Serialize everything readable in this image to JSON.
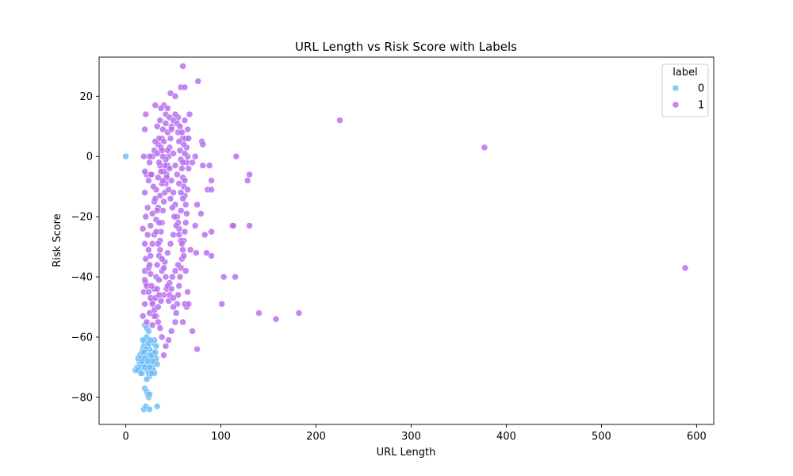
{
  "chart_data": {
    "type": "scatter",
    "title": "URL Length vs Risk Score with Labels",
    "xlabel": "URL Length",
    "ylabel": "Risk Score",
    "xlim": [
      -28,
      618
    ],
    "ylim": [
      -89,
      33
    ],
    "xticks": [
      0,
      100,
      200,
      300,
      400,
      500,
      600
    ],
    "yticks": [
      -80,
      -60,
      -40,
      -20,
      0,
      20
    ],
    "grid": false,
    "legend": {
      "title": "label",
      "placement": "top-right"
    },
    "series": [
      {
        "name": "0",
        "color": "#6bbcf7",
        "points": [
          [
            0,
            0
          ],
          [
            10,
            -71
          ],
          [
            12,
            -70
          ],
          [
            14,
            -68
          ],
          [
            13,
            -67
          ],
          [
            15,
            -69
          ],
          [
            16,
            -70
          ],
          [
            17,
            -72
          ],
          [
            18,
            -66
          ],
          [
            19,
            -67
          ],
          [
            20,
            -68
          ],
          [
            21,
            -69
          ],
          [
            22,
            -70
          ],
          [
            23,
            -71
          ],
          [
            24,
            -72
          ],
          [
            25,
            -73
          ],
          [
            15,
            -66
          ],
          [
            17,
            -65
          ],
          [
            18,
            -64
          ],
          [
            19,
            -63
          ],
          [
            20,
            -62
          ],
          [
            21,
            -61
          ],
          [
            22,
            -60
          ],
          [
            20,
            -56
          ],
          [
            22,
            -57
          ],
          [
            24,
            -58
          ],
          [
            18,
            -61
          ],
          [
            16,
            -67
          ],
          [
            26,
            -68
          ],
          [
            27,
            -69
          ],
          [
            28,
            -70
          ],
          [
            29,
            -71
          ],
          [
            30,
            -72
          ],
          [
            31,
            -68
          ],
          [
            32,
            -67
          ],
          [
            33,
            -69
          ],
          [
            30,
            -66
          ],
          [
            28,
            -65
          ],
          [
            25,
            -64
          ],
          [
            23,
            -63
          ],
          [
            21,
            -64
          ],
          [
            19,
            -65
          ],
          [
            24,
            -66
          ],
          [
            26,
            -67
          ],
          [
            27,
            -66
          ],
          [
            22,
            -74
          ],
          [
            20,
            -77
          ],
          [
            22,
            -78
          ],
          [
            23,
            -79
          ],
          [
            24,
            -80
          ],
          [
            25,
            -79
          ],
          [
            19,
            -84
          ],
          [
            21,
            -83
          ],
          [
            25,
            -84
          ],
          [
            33,
            -83
          ],
          [
            14,
            -70
          ],
          [
            12,
            -71
          ],
          [
            16,
            -72
          ],
          [
            18,
            -69
          ],
          [
            20,
            -70
          ],
          [
            25,
            -70
          ],
          [
            28,
            -68
          ],
          [
            31,
            -65
          ],
          [
            29,
            -62
          ],
          [
            32,
            -63
          ],
          [
            30,
            -61
          ],
          [
            24,
            -62
          ],
          [
            26,
            -61
          ],
          [
            17,
            -68
          ],
          [
            20,
            -67
          ],
          [
            23,
            -68
          ],
          [
            27,
            -72
          ]
        ]
      },
      {
        "name": "1",
        "color": "#b469f0",
        "points": [
          [
            60,
            30
          ],
          [
            76,
            25
          ],
          [
            58,
            23
          ],
          [
            62,
            23
          ],
          [
            47,
            21
          ],
          [
            52,
            20
          ],
          [
            225,
            12
          ],
          [
            377,
            3
          ],
          [
            588,
            -37
          ],
          [
            116,
            0
          ],
          [
            80,
            5
          ],
          [
            81,
            4
          ],
          [
            130,
            -6
          ],
          [
            128,
            -8
          ],
          [
            112,
            -23
          ],
          [
            113,
            -23
          ],
          [
            130,
            -23
          ],
          [
            103,
            -40
          ],
          [
            115,
            -40
          ],
          [
            101,
            -49
          ],
          [
            140,
            -52
          ],
          [
            158,
            -54
          ],
          [
            182,
            -52
          ],
          [
            70,
            -58
          ],
          [
            75,
            -64
          ],
          [
            68,
            -31
          ],
          [
            74,
            -32
          ],
          [
            85,
            -32
          ],
          [
            90,
            -33
          ],
          [
            83,
            -26
          ],
          [
            90,
            -25
          ],
          [
            73,
            -23
          ],
          [
            79,
            -19
          ],
          [
            75,
            -16
          ],
          [
            86,
            -11
          ],
          [
            90,
            -11
          ],
          [
            90,
            -8
          ],
          [
            88,
            -3
          ],
          [
            81,
            -3
          ],
          [
            73,
            0
          ],
          [
            70,
            -2
          ],
          [
            67,
            14
          ],
          [
            62,
            12
          ],
          [
            65,
            9
          ],
          [
            60,
            6
          ],
          [
            55,
            13
          ],
          [
            40,
            17
          ],
          [
            42,
            14
          ],
          [
            31,
            17
          ],
          [
            37,
            16
          ],
          [
            46,
            13
          ],
          [
            48,
            10
          ],
          [
            44,
            8
          ],
          [
            38,
            6
          ],
          [
            34,
            4
          ],
          [
            30,
            2
          ],
          [
            28,
            0
          ],
          [
            25,
            -2
          ],
          [
            22,
            -6
          ],
          [
            20,
            -12
          ],
          [
            23,
            -17
          ],
          [
            21,
            -20
          ],
          [
            18,
            -24
          ],
          [
            20,
            -29
          ],
          [
            21,
            -34
          ],
          [
            20,
            -38
          ],
          [
            21,
            -42
          ],
          [
            19,
            -45
          ],
          [
            20,
            -49
          ],
          [
            18,
            -53
          ],
          [
            22,
            -55
          ],
          [
            25,
            -52
          ],
          [
            28,
            -48
          ],
          [
            30,
            -44
          ],
          [
            32,
            -40
          ],
          [
            33,
            -36
          ],
          [
            35,
            -33
          ],
          [
            36,
            -28
          ],
          [
            37,
            -25
          ],
          [
            38,
            -22
          ],
          [
            39,
            -18
          ],
          [
            40,
            -15
          ],
          [
            41,
            -12
          ],
          [
            42,
            -9
          ],
          [
            43,
            -6
          ],
          [
            44,
            -3
          ],
          [
            45,
            0
          ],
          [
            46,
            3
          ],
          [
            47,
            6
          ],
          [
            48,
            9
          ],
          [
            50,
            12
          ],
          [
            52,
            14
          ],
          [
            54,
            11
          ],
          [
            55,
            8
          ],
          [
            56,
            5
          ],
          [
            57,
            2
          ],
          [
            58,
            -1
          ],
          [
            59,
            -4
          ],
          [
            60,
            -7
          ],
          [
            61,
            -10
          ],
          [
            62,
            -13
          ],
          [
            63,
            -16
          ],
          [
            64,
            -19
          ],
          [
            63,
            -22
          ],
          [
            62,
            -25
          ],
          [
            61,
            -28
          ],
          [
            60,
            -31
          ],
          [
            59,
            -34
          ],
          [
            58,
            -37
          ],
          [
            57,
            -40
          ],
          [
            56,
            -43
          ],
          [
            55,
            -46
          ],
          [
            54,
            -49
          ],
          [
            53,
            -52
          ],
          [
            52,
            -55
          ],
          [
            48,
            -58
          ],
          [
            45,
            -61
          ],
          [
            42,
            -63
          ],
          [
            40,
            -66
          ],
          [
            38,
            -60
          ],
          [
            36,
            -57
          ],
          [
            34,
            -55
          ],
          [
            32,
            -53
          ],
          [
            30,
            -51
          ],
          [
            28,
            -49
          ],
          [
            26,
            -47
          ],
          [
            24,
            -45
          ],
          [
            22,
            -43
          ],
          [
            20,
            -41
          ],
          [
            24,
            -37
          ],
          [
            26,
            -33
          ],
          [
            28,
            -29
          ],
          [
            30,
            -26
          ],
          [
            32,
            -21
          ],
          [
            34,
            -17
          ],
          [
            36,
            -13
          ],
          [
            38,
            -9
          ],
          [
            40,
            -5
          ],
          [
            42,
            -1
          ],
          [
            44,
            2
          ],
          [
            46,
            -4
          ],
          [
            48,
            -8
          ],
          [
            50,
            -12
          ],
          [
            52,
            -16
          ],
          [
            54,
            -20
          ],
          [
            56,
            -24
          ],
          [
            58,
            -28
          ],
          [
            64,
            -2
          ],
          [
            66,
            -4
          ],
          [
            65,
            0
          ],
          [
            64,
            3
          ],
          [
            63,
            6
          ],
          [
            66,
            6
          ],
          [
            62,
            -8
          ],
          [
            65,
            -11
          ],
          [
            60,
            -14
          ],
          [
            58,
            -18
          ],
          [
            55,
            -22
          ],
          [
            50,
            -26
          ],
          [
            47,
            -29
          ],
          [
            44,
            -32
          ],
          [
            41,
            -35
          ],
          [
            38,
            -38
          ],
          [
            35,
            -41
          ],
          [
            33,
            -44
          ],
          [
            31,
            -47
          ],
          [
            34,
            -50
          ],
          [
            37,
            -48
          ],
          [
            40,
            -46
          ],
          [
            43,
            -44
          ],
          [
            46,
            -42
          ],
          [
            49,
            -40
          ],
          [
            52,
            -38
          ],
          [
            55,
            -36
          ],
          [
            39,
            9
          ],
          [
            36,
            12
          ],
          [
            33,
            10
          ],
          [
            35,
            6
          ],
          [
            37,
            3
          ],
          [
            39,
            0
          ],
          [
            41,
            -3
          ],
          [
            43,
            -7
          ],
          [
            45,
            -11
          ],
          [
            47,
            -14
          ],
          [
            49,
            -17
          ],
          [
            51,
            -20
          ],
          [
            53,
            -23
          ],
          [
            56,
            -26
          ],
          [
            59,
            -29
          ],
          [
            61,
            -33
          ],
          [
            63,
            -38
          ],
          [
            65,
            -45
          ],
          [
            64,
            -50
          ],
          [
            62,
            -49
          ],
          [
            66,
            -49
          ],
          [
            60,
            -55
          ],
          [
            50,
            -50
          ],
          [
            45,
            -48
          ],
          [
            35,
            -46
          ],
          [
            30,
            -53
          ],
          [
            28,
            -56
          ],
          [
            27,
            -43
          ],
          [
            26,
            -39
          ],
          [
            25,
            -36
          ],
          [
            24,
            -31
          ],
          [
            23,
            -26
          ],
          [
            26,
            -23
          ],
          [
            28,
            -19
          ],
          [
            30,
            -15
          ],
          [
            32,
            -11
          ],
          [
            34,
            -7
          ],
          [
            36,
            -3
          ],
          [
            38,
            2
          ],
          [
            40,
            5
          ],
          [
            42,
            11
          ],
          [
            44,
            16
          ],
          [
            50,
            1
          ],
          [
            52,
            -3
          ],
          [
            54,
            -6
          ],
          [
            56,
            -9
          ],
          [
            58,
            -12
          ],
          [
            60,
            -2
          ],
          [
            62,
            1
          ],
          [
            61,
            4
          ],
          [
            59,
            8
          ],
          [
            57,
            10
          ],
          [
            26,
            -6
          ],
          [
            24,
            -8
          ],
          [
            20,
            -5
          ],
          [
            19,
            0
          ],
          [
            20,
            9
          ],
          [
            21,
            14
          ],
          [
            25,
            0
          ],
          [
            32,
            -25
          ],
          [
            34,
            -29
          ],
          [
            36,
            -31
          ],
          [
            38,
            -34
          ],
          [
            40,
            -37
          ],
          [
            42,
            -40
          ],
          [
            44,
            -43
          ],
          [
            46,
            -46
          ],
          [
            48,
            -44
          ],
          [
            50,
            -47
          ],
          [
            35,
            -22
          ],
          [
            33,
            -18
          ],
          [
            31,
            -14
          ],
          [
            29,
            -10
          ],
          [
            27,
            -6
          ],
          [
            31,
            5
          ],
          [
            33,
            1
          ],
          [
            35,
            -2
          ],
          [
            37,
            -5
          ],
          [
            39,
            -8
          ]
        ]
      }
    ]
  }
}
